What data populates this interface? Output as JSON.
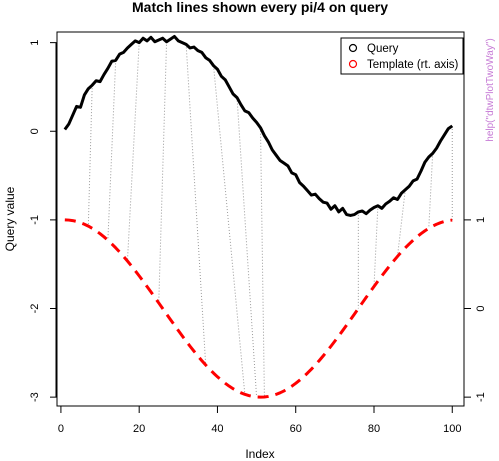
{
  "chart_data": {
    "type": "line",
    "title": "Match lines shown every pi/4 on query",
    "xlabel": "Index",
    "ylabel": "Query value",
    "side_note": "help(\"dtwPlotTwoWay\")",
    "xlim": [
      -1,
      103
    ],
    "ylim": [
      -3.1,
      1.12
    ],
    "right_ylim": [
      -1.05,
      1.05
    ],
    "x_ticks": [
      0,
      20,
      40,
      60,
      80,
      100
    ],
    "y_ticks": [
      -3,
      -2,
      -1,
      0,
      1
    ],
    "right_y_ticks": [
      -1,
      0,
      1
    ],
    "grid": false,
    "legend_position": "top-right",
    "colors": {
      "query": "#000000",
      "template": "#ff0000",
      "side_note": "#c77cd6",
      "match": "#999999"
    },
    "series": [
      {
        "name": "Query",
        "axis": "left",
        "style": "solid",
        "x": [
          1,
          2,
          3,
          4,
          5,
          6,
          7,
          8,
          9,
          10,
          11,
          12,
          13,
          14,
          15,
          16,
          17,
          18,
          19,
          20,
          21,
          22,
          23,
          24,
          25,
          26,
          27,
          28,
          29,
          30,
          31,
          32,
          33,
          34,
          35,
          36,
          37,
          38,
          39,
          40,
          41,
          42,
          43,
          44,
          45,
          46,
          47,
          48,
          49,
          50,
          51,
          52,
          53,
          54,
          55,
          56,
          57,
          58,
          59,
          60,
          61,
          62,
          63,
          64,
          65,
          66,
          67,
          68,
          69,
          70,
          71,
          72,
          73,
          74,
          75,
          76,
          77,
          78,
          79,
          80,
          81,
          82,
          83,
          84,
          85,
          86,
          87,
          88,
          89,
          90,
          91,
          92,
          93,
          94,
          95,
          96,
          97,
          98,
          99,
          100
        ],
        "values": [
          0.02,
          0.08,
          0.18,
          0.28,
          0.27,
          0.41,
          0.48,
          0.52,
          0.57,
          0.56,
          0.64,
          0.71,
          0.79,
          0.8,
          0.87,
          0.89,
          0.94,
          0.98,
          1.02,
          1.0,
          1.05,
          1.02,
          1.06,
          1.01,
          1.03,
          1.05,
          1.01,
          1.04,
          1.07,
          1.02,
          1.0,
          0.98,
          0.94,
          0.95,
          0.91,
          0.89,
          0.83,
          0.8,
          0.74,
          0.7,
          0.62,
          0.58,
          0.5,
          0.42,
          0.38,
          0.3,
          0.23,
          0.21,
          0.15,
          0.1,
          0.04,
          -0.05,
          -0.12,
          -0.21,
          -0.27,
          -0.33,
          -0.36,
          -0.39,
          -0.47,
          -0.49,
          -0.58,
          -0.62,
          -0.67,
          -0.72,
          -0.71,
          -0.76,
          -0.8,
          -0.81,
          -0.88,
          -0.84,
          -0.91,
          -0.87,
          -0.94,
          -0.95,
          -0.94,
          -0.91,
          -0.9,
          -0.93,
          -0.89,
          -0.86,
          -0.84,
          -0.87,
          -0.82,
          -0.79,
          -0.75,
          -0.77,
          -0.7,
          -0.66,
          -0.62,
          -0.56,
          -0.54,
          -0.45,
          -0.35,
          -0.29,
          -0.25,
          -0.19,
          -0.11,
          -0.04,
          0.03,
          0.06
        ]
      },
      {
        "name": "Template (rt. axis)",
        "axis": "right",
        "style": "dashed",
        "function": "cos(2*pi*(i-1)/100) - 2",
        "x_range": [
          1,
          100
        ]
      }
    ],
    "match_lines": [
      [
        8,
        7
      ],
      [
        14,
        12
      ],
      [
        20,
        17
      ],
      [
        27,
        25
      ],
      [
        32,
        37
      ],
      [
        39,
        47
      ],
      [
        45,
        50
      ],
      [
        51,
        52
      ],
      [
        76,
        76
      ],
      [
        81,
        80
      ],
      [
        88,
        86
      ],
      [
        95,
        94
      ],
      [
        100,
        100
      ]
    ]
  }
}
